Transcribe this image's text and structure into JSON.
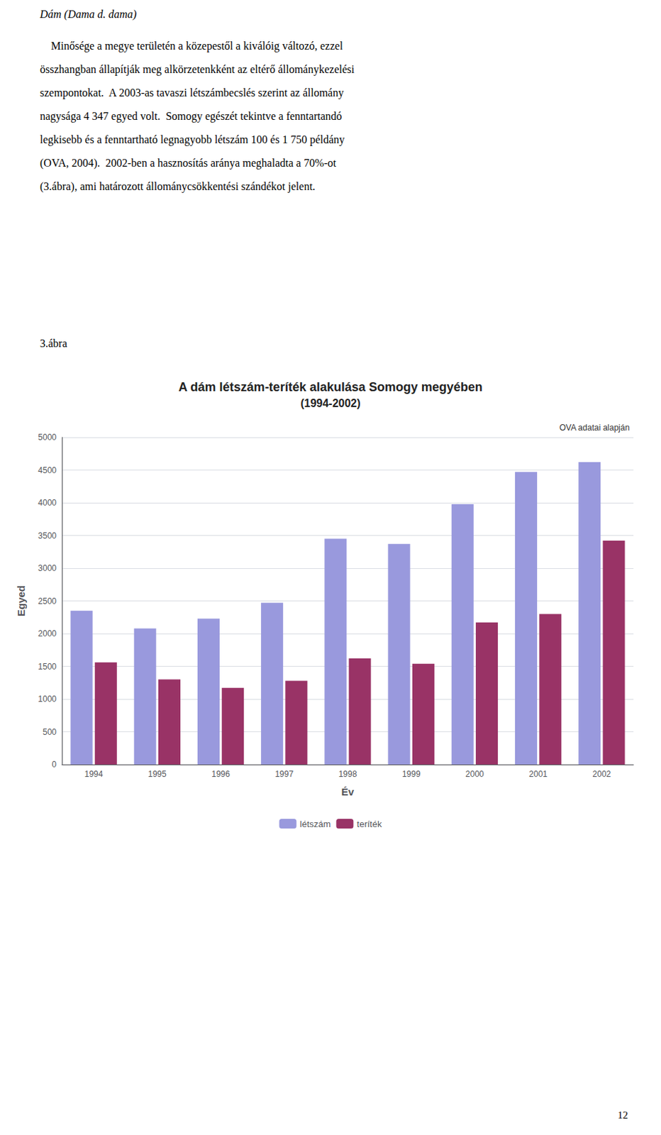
{
  "page": {
    "intro": "Dám (Dama d. dama)",
    "paragraph": [
      "    Minősége a megye területén a közepestől a kiválóig változó, ezzel",
      "összhangban állapítják meg alkörzetenkként az eltérő állománykezelési",
      "szempontokat.  A 2003-as tavaszi létszámbecslés szerint az állomány",
      "nagysága 4 347 egyed volt.  Somogy egészét tekintve a fenntartandó",
      "legkisebb és a fenntartható legnagyobb létszám 100 és 1 750 példány",
      "(OVA, 2004).  2002-ben a hasznosítás aránya meghaladta a 70%-ot",
      "(3.ábra), ami határozott állománycsökkentési szándékot jelent."
    ],
    "figure_label": "3.ábra",
    "page_number": "12"
  },
  "chart_data": {
    "type": "bar",
    "title": "A dám létszám-teríték alakulása Somogy megyében",
    "subtitle": "(1994-2002)",
    "annotation": "OVA adatai alapján",
    "xlabel": "Év",
    "ylabel": "Egyed",
    "categories": [
      "1994",
      "1995",
      "1996",
      "1997",
      "1998",
      "1999",
      "2000",
      "2001",
      "2002"
    ],
    "series": [
      {
        "name": "létszám",
        "color": "#9999DD",
        "values": [
          2350,
          2080,
          2230,
          2470,
          3450,
          3370,
          3980,
          4470,
          4620
        ]
      },
      {
        "name": "teríték",
        "color": "#993366",
        "values": [
          1560,
          1300,
          1170,
          1280,
          1620,
          1540,
          2170,
          2300,
          3420
        ]
      }
    ],
    "ylim": [
      0,
      5000
    ],
    "yticks": [
      0,
      500,
      1000,
      1500,
      2000,
      2500,
      3000,
      3500,
      4000,
      4500,
      5000
    ],
    "grid": true,
    "legend": "bottom"
  }
}
